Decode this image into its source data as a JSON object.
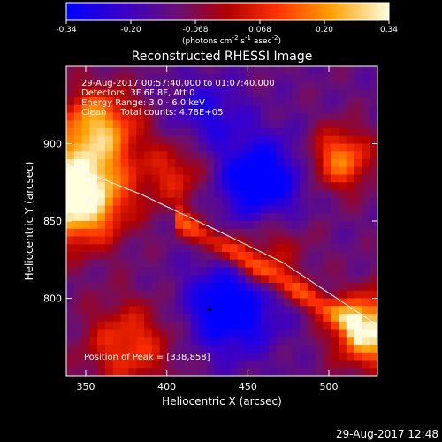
{
  "colorbar": {
    "ticks": [
      "-0.34",
      "-0.20",
      "-0.068",
      "0.068",
      "0.20",
      "0.34"
    ],
    "units_main": "(photons cm",
    "units_exp1": "-2",
    "units_mid": " s",
    "units_exp2": "-1",
    "units_end": " asec",
    "units_exp3": "-2",
    "units_close": ")"
  },
  "chart_data": {
    "type": "heatmap",
    "title": "Reconstructed RHESSI Image",
    "xlabel": "Heliocentric X (arcsec)",
    "ylabel": "Heliocentric Y (arcsec)",
    "xlim": [
      338,
      530
    ],
    "ylim": [
      750,
      950
    ],
    "xticks": [
      350,
      400,
      450,
      500
    ],
    "yticks": [
      800,
      850,
      900
    ],
    "color_range": [
      -0.34,
      0.34
    ],
    "peak": [
      338,
      858
    ],
    "annotations": [
      "29-Aug-2017 00:57:40.000 to 01:07:40.000",
      "Detectors: 3F 6F 8F, Att 0",
      "Energy Range: 3.0 - 6.0 keV",
      "Clean     Total counts: 4.78E+05"
    ],
    "peak_label": "Position of Peak = [338,858]"
  },
  "timestamp": "29-Aug-2017 12:48"
}
